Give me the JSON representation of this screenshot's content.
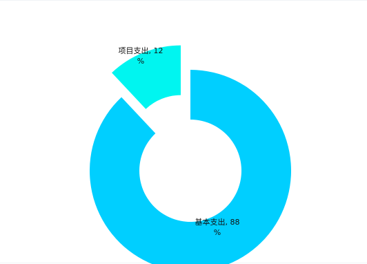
{
  "chart_data": {
    "type": "pie",
    "variant": "donut",
    "slices": [
      {
        "name": "基本支出",
        "value": 88,
        "label_line1": "基本支出, 88",
        "label_line2": "%",
        "color": "#00cfff",
        "exploded": false
      },
      {
        "name": "项目支出",
        "value": 12,
        "label_line1": "项目支出, 12",
        "label_line2": "%",
        "color": "#00f5f0",
        "exploded": true
      }
    ],
    "legend": "none",
    "title": ""
  }
}
